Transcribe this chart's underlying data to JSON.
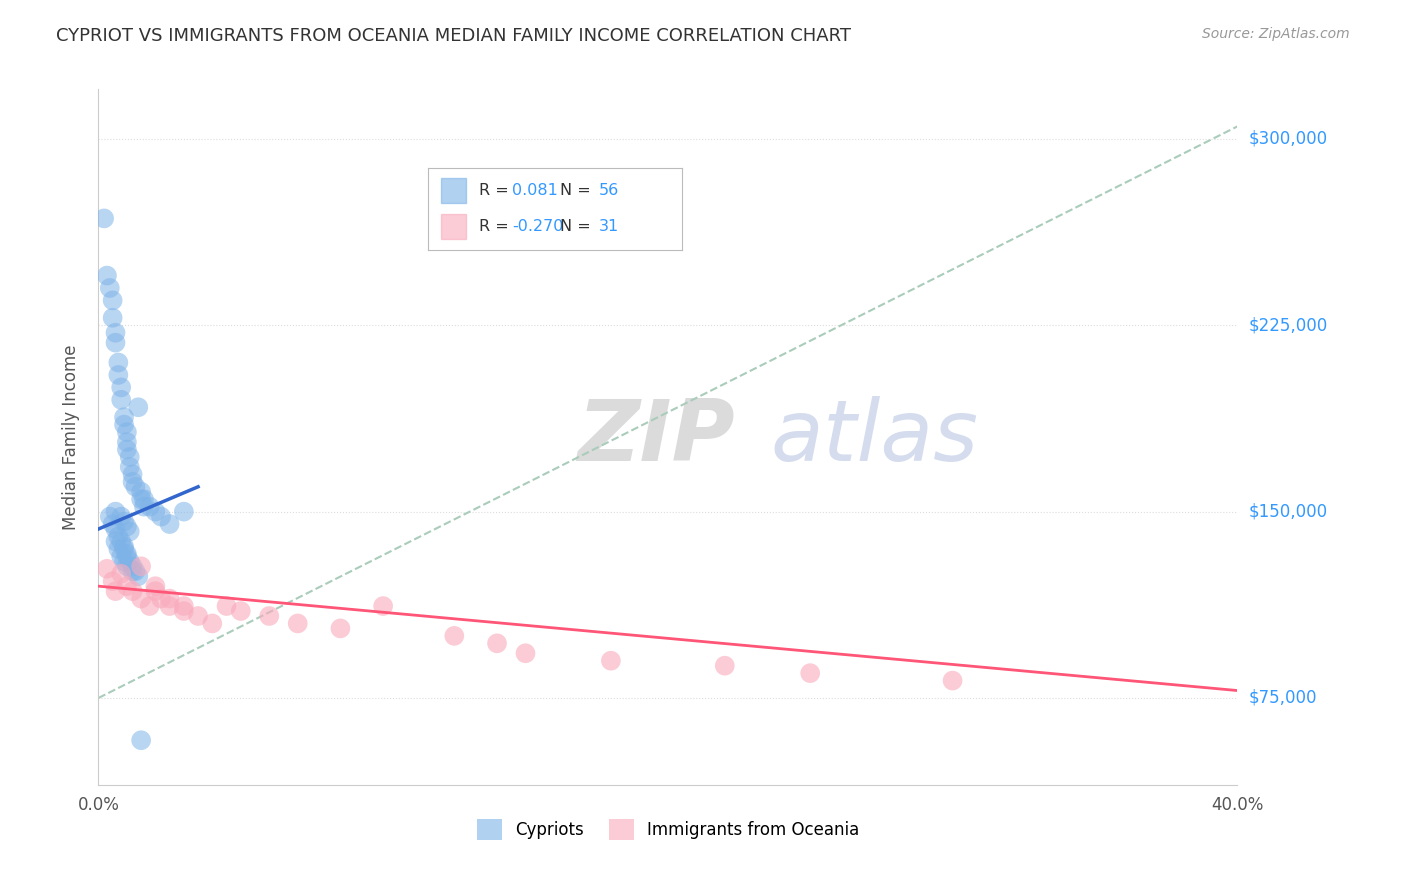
{
  "title": "CYPRIOT VS IMMIGRANTS FROM OCEANIA MEDIAN FAMILY INCOME CORRELATION CHART",
  "source": "Source: ZipAtlas.com",
  "ylabel": "Median Family Income",
  "y_tick_labels": [
    "$75,000",
    "$150,000",
    "$225,000",
    "$300,000"
  ],
  "y_tick_values": [
    75000,
    150000,
    225000,
    300000
  ],
  "xmin": 0.0,
  "xmax": 40.0,
  "ymin": 40000,
  "ymax": 320000,
  "cypriot_color": "#7EB3E8",
  "oceania_color": "#F9AABC",
  "cypriot_scatter_x": [
    0.2,
    0.3,
    0.4,
    0.5,
    0.5,
    0.6,
    0.6,
    0.7,
    0.7,
    0.8,
    0.8,
    0.9,
    0.9,
    1.0,
    1.0,
    1.0,
    1.1,
    1.1,
    1.2,
    1.2,
    1.3,
    1.4,
    1.5,
    1.6,
    1.8,
    2.0,
    2.2,
    2.5,
    0.4,
    0.5,
    0.6,
    0.7,
    0.8,
    0.9,
    0.9,
    1.0,
    1.0,
    1.1,
    1.2,
    1.3,
    1.5,
    1.6,
    0.6,
    0.8,
    0.9,
    1.0,
    1.1,
    3.0,
    0.6,
    0.7,
    0.8,
    0.9,
    1.0,
    1.2,
    1.4,
    1.5
  ],
  "cypriot_scatter_y": [
    268000,
    245000,
    240000,
    235000,
    228000,
    222000,
    218000,
    210000,
    205000,
    200000,
    195000,
    188000,
    185000,
    182000,
    178000,
    175000,
    172000,
    168000,
    165000,
    162000,
    160000,
    192000,
    158000,
    155000,
    152000,
    150000,
    148000,
    145000,
    148000,
    145000,
    143000,
    140000,
    138000,
    136000,
    135000,
    133000,
    132000,
    130000,
    128000,
    126000,
    155000,
    152000,
    150000,
    148000,
    146000,
    144000,
    142000,
    150000,
    138000,
    135000,
    132000,
    130000,
    128000,
    126000,
    124000,
    58000
  ],
  "oceania_scatter_x": [
    0.3,
    0.5,
    0.6,
    0.8,
    1.0,
    1.2,
    1.5,
    1.8,
    2.0,
    2.2,
    2.5,
    3.0,
    3.5,
    4.0,
    4.5,
    5.0,
    6.0,
    7.0,
    8.5,
    10.0,
    12.5,
    14.0,
    15.0,
    18.0,
    22.0,
    25.0,
    30.0,
    1.5,
    2.0,
    2.5,
    3.0
  ],
  "oceania_scatter_y": [
    127000,
    122000,
    118000,
    125000,
    120000,
    118000,
    115000,
    112000,
    118000,
    115000,
    112000,
    110000,
    108000,
    105000,
    112000,
    110000,
    108000,
    105000,
    103000,
    112000,
    100000,
    97000,
    93000,
    90000,
    88000,
    85000,
    82000,
    128000,
    120000,
    115000,
    112000
  ],
  "blue_trend_x": [
    0.0,
    3.5
  ],
  "blue_trend_y": [
    143000,
    160000
  ],
  "pink_trend_x": [
    0.0,
    40.0
  ],
  "pink_trend_y": [
    120000,
    78000
  ],
  "dashed_trend_x": [
    0.0,
    40.0
  ],
  "dashed_trend_y": [
    75000,
    305000
  ],
  "background_color": "#FFFFFF",
  "grid_color": "#DDDDDD",
  "title_color": "#333333",
  "right_label_color": "#3399FF",
  "watermark_zip_color": "#CCCCCC",
  "watermark_atlas_color": "#AABBDD"
}
